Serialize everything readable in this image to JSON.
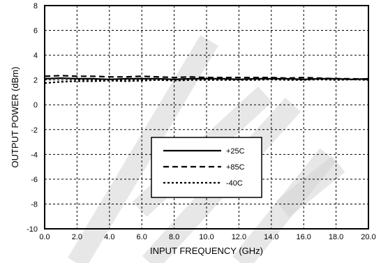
{
  "chart_data": {
    "type": "line",
    "xlabel": "INPUT FREQUENCY (GHz)",
    "ylabel": "OUTPUT POWER (dBm)",
    "xlim": [
      0,
      20
    ],
    "ylim": [
      -10,
      8
    ],
    "x_ticks": [
      "0.0",
      "2.0",
      "4.0",
      "6.0",
      "8.0",
      "10.0",
      "12.0",
      "14.0",
      "16.0",
      "18.0",
      "20.0"
    ],
    "y_ticks": [
      "8",
      "6",
      "4",
      "2",
      "0",
      "-2",
      "-4",
      "-6",
      "-8",
      "-10"
    ],
    "grid": true,
    "legend_position": "center-bottom",
    "x": [
      0,
      1,
      2,
      3,
      4,
      5,
      6,
      7,
      8,
      9,
      10,
      11,
      12,
      13,
      14,
      15,
      16,
      17,
      18,
      19,
      20
    ],
    "series": [
      {
        "name": "+25C",
        "style": "solid",
        "values": [
          2.1,
          2.15,
          2.1,
          2.1,
          2.05,
          2.1,
          2.1,
          2.1,
          2.05,
          2.1,
          2.1,
          2.1,
          2.05,
          2.1,
          2.1,
          2.1,
          2.05,
          2.1,
          2.1,
          2.05,
          2.1
        ]
      },
      {
        "name": "+85C",
        "style": "dashed",
        "values": [
          2.3,
          2.35,
          2.3,
          2.3,
          2.25,
          2.25,
          2.3,
          2.25,
          2.2,
          2.25,
          2.2,
          2.2,
          2.2,
          2.2,
          2.2,
          2.15,
          2.2,
          2.15,
          2.1,
          2.1,
          2.05
        ]
      },
      {
        "name": "-40C",
        "style": "dotted",
        "values": [
          1.75,
          1.85,
          1.9,
          1.9,
          1.95,
          1.9,
          1.95,
          2.0,
          1.95,
          2.0,
          2.0,
          2.0,
          2.0,
          2.0,
          2.05,
          2.0,
          2.0,
          2.05,
          2.0,
          2.05,
          2.0
        ]
      }
    ],
    "colors": {
      "line": "#000000",
      "watermark": "#d4d4d4",
      "background": "#ffffff"
    }
  }
}
